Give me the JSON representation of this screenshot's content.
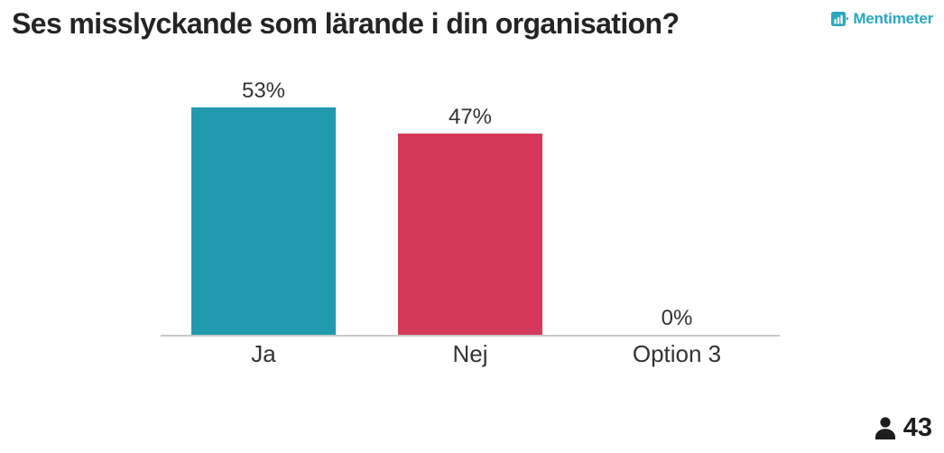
{
  "header": {
    "title": "Ses misslyckande som lärande i din organisation?"
  },
  "brand": {
    "name": "Mentimeter",
    "color": "#29a8bd",
    "icon": "mentimeter-bar-chart-logo"
  },
  "chart_data": {
    "type": "bar",
    "title": "Ses misslyckande som lärande i din organisation?",
    "categories": [
      "Ja",
      "Nej",
      "Option 3"
    ],
    "values": [
      53,
      47,
      0
    ],
    "value_labels": [
      "53%",
      "47%",
      "0%"
    ],
    "unit": "%",
    "bar_colors": [
      "#219ab0",
      "#d4395b",
      "#219ab0"
    ],
    "xlabel": "",
    "ylabel": "",
    "ylim": [
      0,
      53
    ],
    "grid": false,
    "legend": false,
    "baseline_color": "#c8c8c8",
    "label_color": "#333333"
  },
  "footer": {
    "participants_count": "43",
    "participants_icon": "person-icon"
  }
}
